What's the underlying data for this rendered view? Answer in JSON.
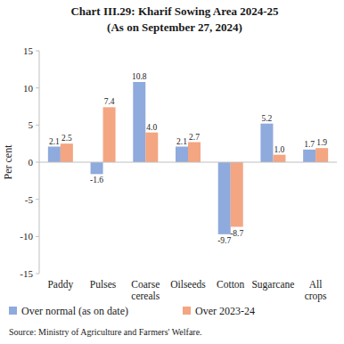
{
  "chart_data": {
    "type": "bar",
    "title": "Chart III.29: Kharif Sowing Area 2024-25",
    "subtitle": "(As on September 27, 2024)",
    "y_label": "Per cent",
    "source": "Source: Ministry of Agriculture and Farmers' Welfare.",
    "categories": [
      "Paddy",
      "Pulses",
      "Coarse cereals",
      "Oilseeds",
      "Cotton",
      "Sugarcane",
      "All crops"
    ],
    "series": [
      {
        "name": "Over normal (as on date)",
        "color": "#8faadc",
        "values": [
          2.1,
          -1.6,
          10.8,
          2.1,
          -9.7,
          5.2,
          1.7
        ]
      },
      {
        "name": "Over 2023-24",
        "color": "#f4a582",
        "values": [
          2.5,
          7.4,
          4.0,
          2.7,
          -8.7,
          1.0,
          1.9
        ],
        "value_labels": [
          "2.5",
          "7.4",
          "4.0",
          "2.7",
          "-8.7",
          "1.0",
          "1.9"
        ]
      }
    ],
    "ylim": [
      -15,
      15
    ],
    "yticks": [
      -15,
      -10,
      -5,
      0,
      5,
      10,
      15
    ],
    "grid": false,
    "legend": "bottom",
    "data_labels": true
  }
}
